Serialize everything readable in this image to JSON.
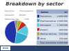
{
  "chart_data": {
    "type": "pie",
    "title": "Breakdown by sector",
    "categories": [
      "Electronics",
      "Pharmaceutical",
      "Aerospace",
      "Biotech",
      "Medical devices",
      "Other"
    ],
    "values": [
      45,
      22,
      15,
      8,
      6,
      4
    ],
    "colors": [
      "#2233aa",
      "#33aacc",
      "#55ccdd",
      "#cc2222",
      "#aaaa22",
      "#888899"
    ],
    "legend": "top left",
    "table": {
      "headers": [
        "Sector",
        "m²"
      ],
      "rows": [
        [
          "Electronics",
          "4 000 000"
        ],
        [
          "Pharmaceutical",
          "2 000 000"
        ],
        [
          "Aerospace",
          "1 300 000"
        ],
        [
          "Biotech",
          "800 000"
        ],
        [
          "Medical devices",
          "550 000"
        ],
        [
          "Other",
          "350 000"
        ],
        [
          "Total worldwide",
          "9 000 000"
        ]
      ]
    },
    "annotations": [
      "ECO"
    ]
  }
}
